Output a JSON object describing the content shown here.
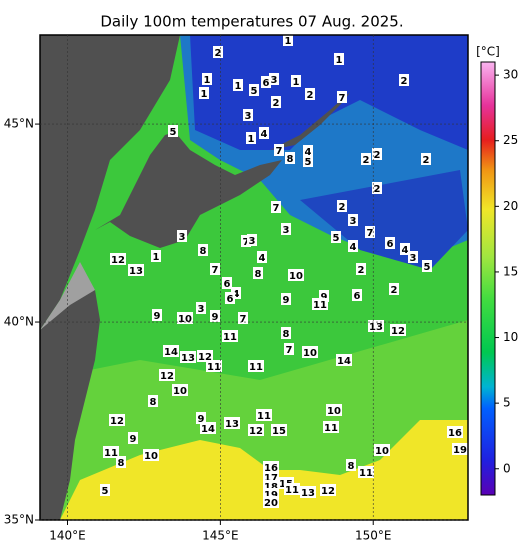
{
  "title": "Daily 100m temperatures 07 Aug. 2025.",
  "map": {
    "lon_range": [
      139.1,
      153.1
    ],
    "lat_range": [
      35,
      47.25
    ],
    "lon_ticks": [
      {
        "value": 140,
        "label": "140°E"
      },
      {
        "value": 145,
        "label": "145°E"
      },
      {
        "value": 150,
        "label": "150°E"
      }
    ],
    "lat_ticks": [
      {
        "value": 35,
        "label": "35°N"
      },
      {
        "value": 40,
        "label": "40°N"
      },
      {
        "value": 45,
        "label": "45°N"
      }
    ],
    "contour_labels": [
      "2",
      "1",
      "1",
      "1",
      "1",
      "1",
      "5",
      "6",
      "3",
      "1",
      "2",
      "2",
      "7",
      "2",
      "3",
      "5",
      "1",
      "4",
      "7",
      "8",
      "4",
      "5",
      "2",
      "2",
      "2",
      "2",
      "7",
      "2",
      "3",
      "3",
      "3",
      "5",
      "7",
      "6",
      "4",
      "4",
      "3",
      "5",
      "8",
      "7",
      "3",
      "4",
      "1",
      "12",
      "13",
      "7",
      "8",
      "10",
      "2",
      "6",
      "4",
      "6",
      "2",
      "6",
      "9",
      "11",
      "3",
      "9",
      "10",
      "9",
      "7",
      "9",
      "13",
      "12",
      "11",
      "8",
      "7",
      "10",
      "14",
      "13",
      "12",
      "11",
      "11",
      "14",
      "12",
      "10",
      "8",
      "12",
      "9",
      "9",
      "14",
      "13",
      "12",
      "11",
      "15",
      "10",
      "11",
      "10",
      "16",
      "19",
      "10",
      "11",
      "8",
      "16",
      "17",
      "18",
      "19",
      "20",
      "15",
      "11",
      "13",
      "12",
      "8",
      "11",
      "5"
    ]
  },
  "colorbar": {
    "label": "[°C]",
    "range": [
      -2,
      31
    ],
    "ticks": [
      0,
      5,
      10,
      15,
      20,
      25,
      30
    ]
  }
}
